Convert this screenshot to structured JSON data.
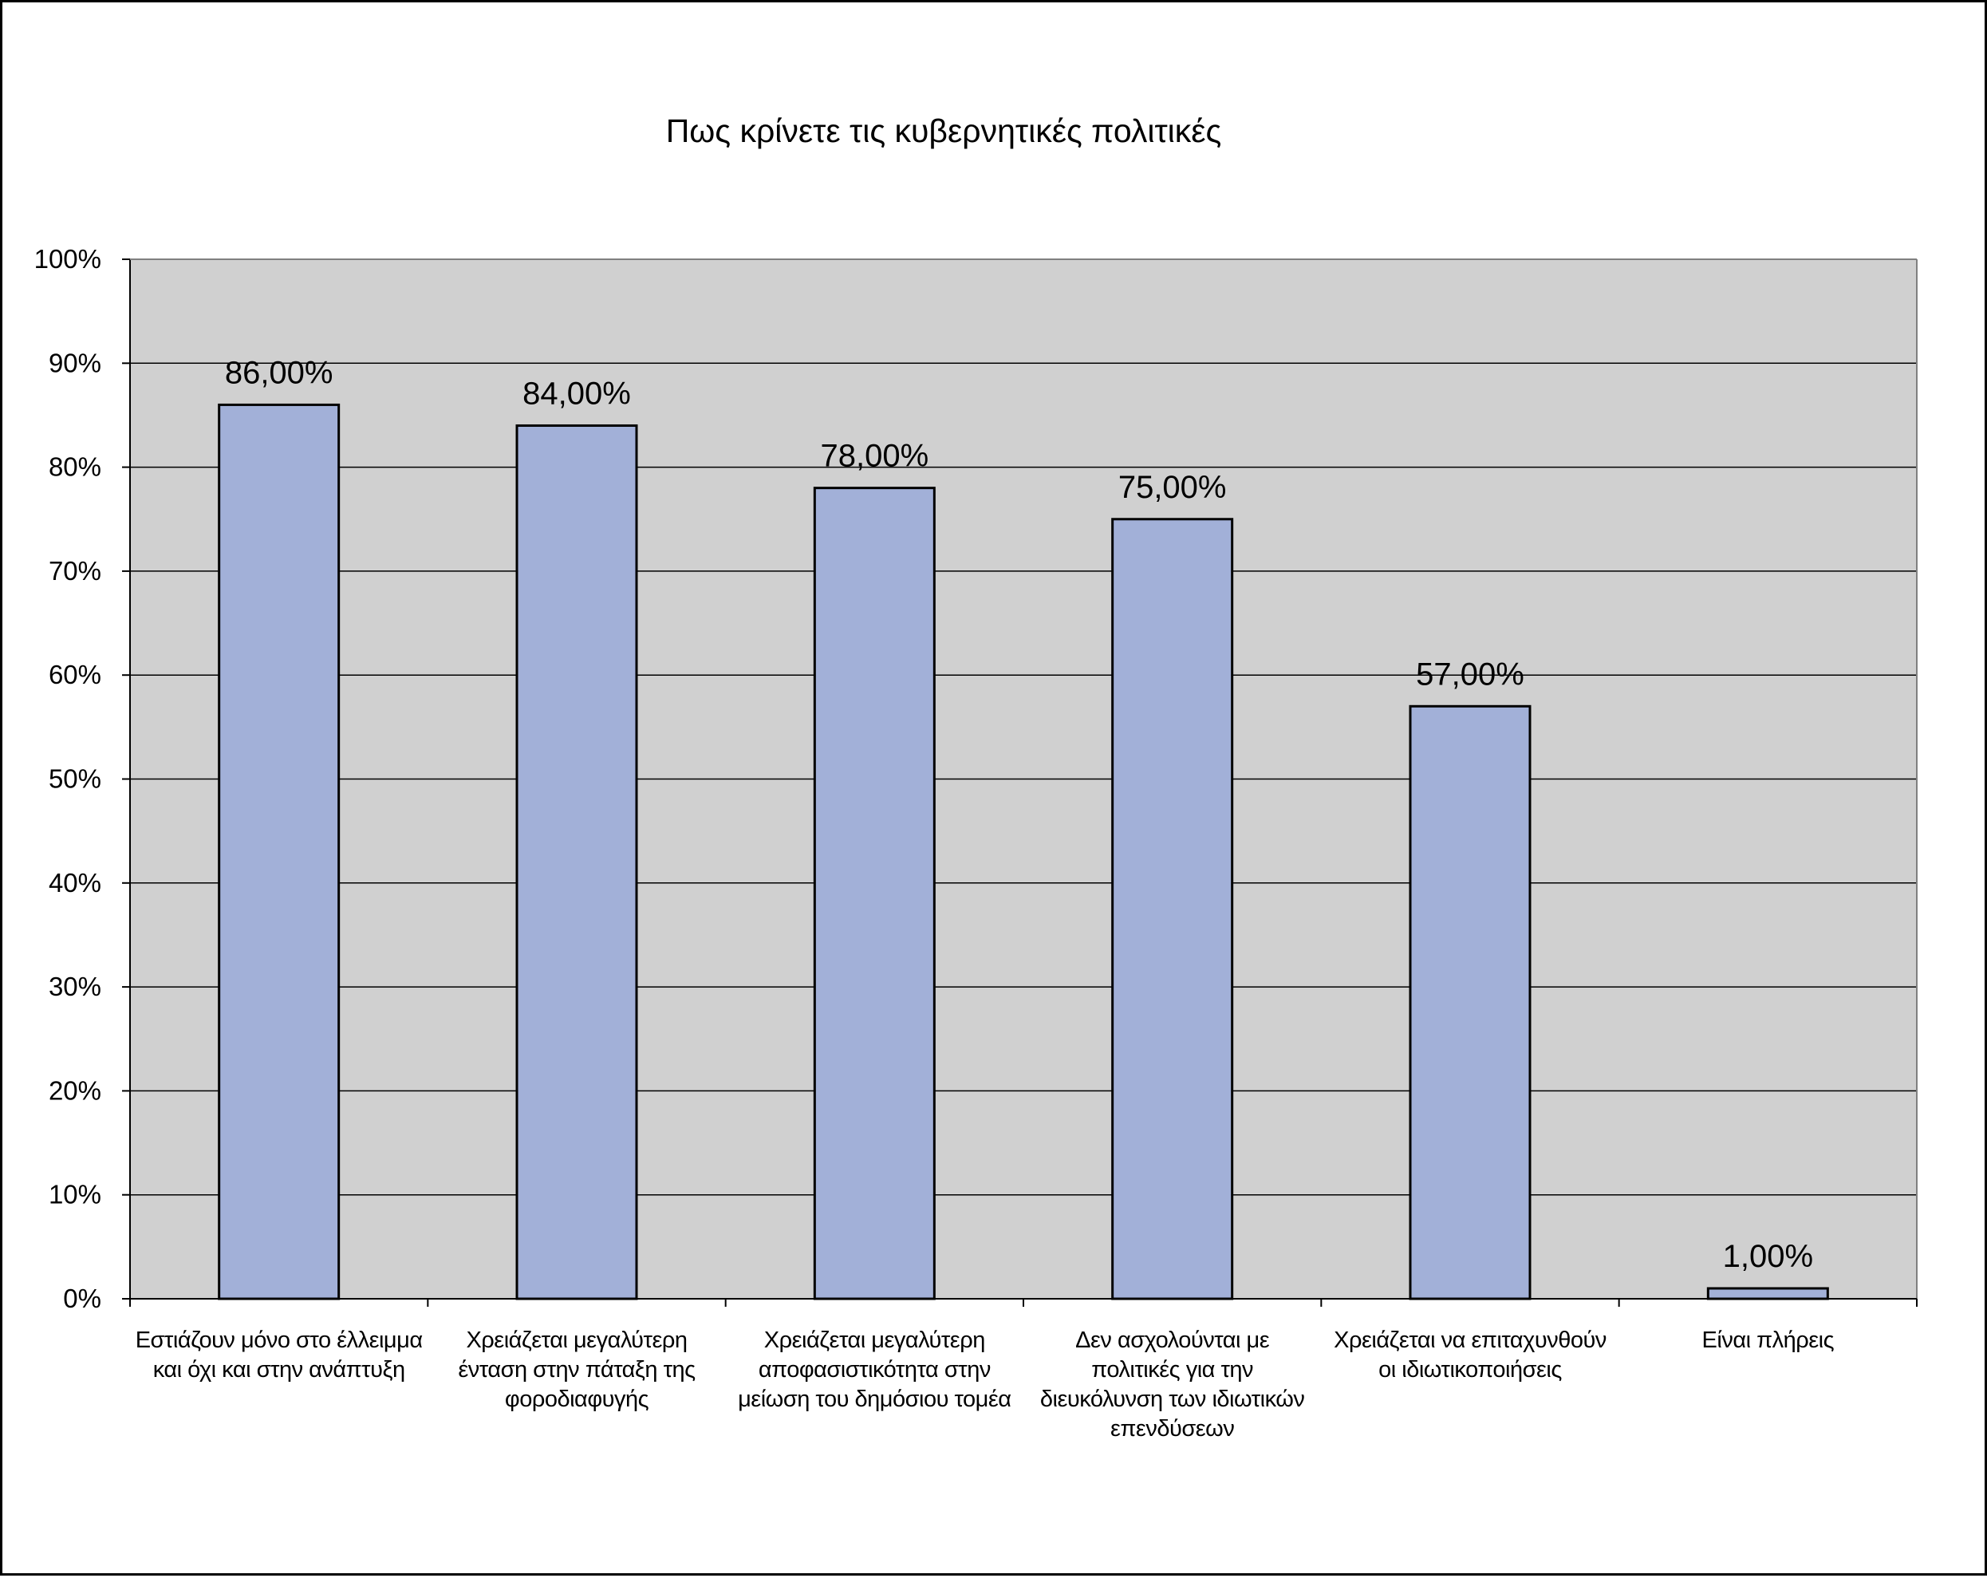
{
  "chart_data": {
    "type": "bar",
    "title": "Πως κρίνετε τις κυβερνητικές πολιτικές",
    "xlabel": "",
    "ylabel": "",
    "categories": [
      "Εστιάζουν μόνο στο έλλειμμα και όχι και στην ανάπτυξη",
      "Χρειάζεται μεγαλύτερη ένταση στην πάταξη της φοροδιαφυγής",
      "Χρειάζεται μεγαλύτερη αποφασιστικότητα στην μείωση του δημόσιου τομέα",
      "Δεν ασχολούνται με πολιτικές για την διευκόλυνση των ιδιωτικών επενδύσεων",
      "Χρειάζεται να επιταχυνθούν οι ιδιωτικοποιήσεις",
      "Είναι πλήρεις"
    ],
    "values": [
      86,
      84,
      78,
      75,
      57,
      1
    ],
    "data_labels": [
      "86,00%",
      "84,00%",
      "78,00%",
      "75,00%",
      "57,00%",
      "1,00%"
    ],
    "yticks": [
      "0%",
      "10%",
      "20%",
      "30%",
      "40%",
      "50%",
      "60%",
      "70%",
      "80%",
      "90%",
      "100%"
    ],
    "ylim": [
      0,
      100
    ],
    "grid": true,
    "legend": "none",
    "colors": {
      "bar_fill": "#a2b0d8",
      "bar_stroke": "#000000",
      "plot_background": "#d0d0d0",
      "gridline": "#000000"
    }
  }
}
